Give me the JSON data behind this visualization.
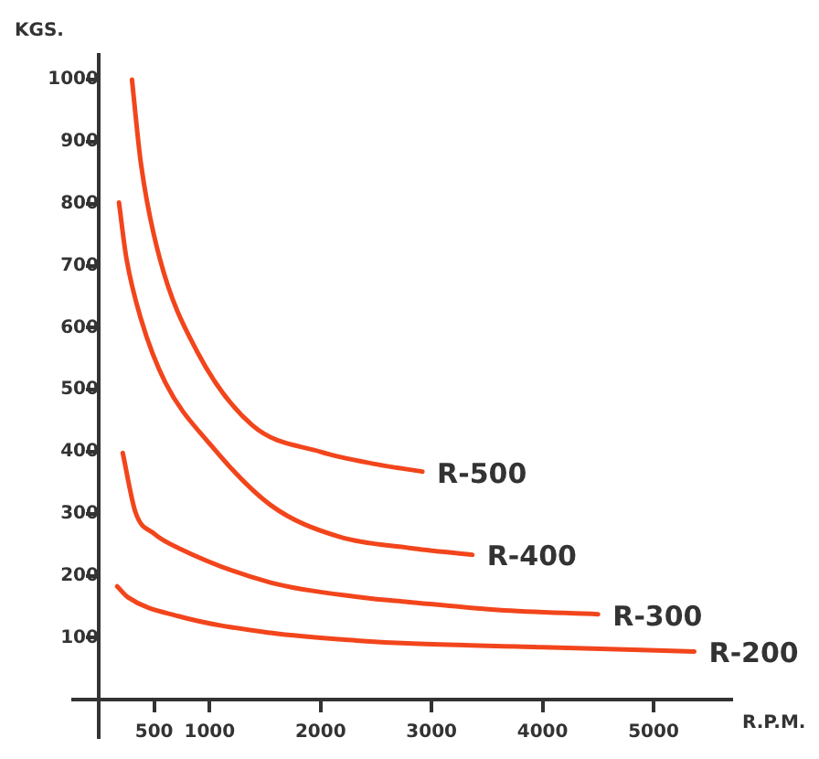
{
  "chart_data": {
    "type": "line",
    "ylabel": "KGS.",
    "xlabel": "R.P.M.",
    "xlim": [
      -230,
      5700
    ],
    "ylim": [
      -60,
      1040
    ],
    "xticks": [
      500,
      1000,
      2000,
      3000,
      4000,
      5000
    ],
    "yticks": [
      100,
      200,
      300,
      400,
      500,
      600,
      700,
      800,
      900,
      1000
    ],
    "grid": false,
    "legend": false,
    "marker": "none",
    "line_style": "solid",
    "series": [
      {
        "name": "R-500",
        "color": "#f2451c",
        "x": [
          300,
          383,
          550,
          883,
          1383,
          2000,
          2500,
          2917
        ],
        "values": [
          1000,
          862,
          712,
          563,
          443,
          400,
          380,
          368
        ]
      },
      {
        "name": "R-400",
        "color": "#f2451c",
        "x": [
          183,
          250,
          383,
          600,
          1000,
          1550,
          2167,
          2800,
          3367
        ],
        "values": [
          802,
          712,
          613,
          512,
          413,
          314,
          263,
          245,
          234
        ]
      },
      {
        "name": "R-300",
        "color": "#f2451c",
        "x": [
          217,
          333,
          500,
          717,
          1550,
          2383,
          2783,
          3600,
          4500
        ],
        "values": [
          398,
          302,
          268,
          245,
          189,
          165,
          158,
          145,
          138
        ]
      },
      {
        "name": "R-200",
        "color": "#f2451c",
        "x": [
          167,
          267,
          717,
          1550,
          2383,
          2783,
          4000,
          5367
        ],
        "values": [
          183,
          165,
          135,
          108,
          95,
          91,
          85,
          78
        ]
      }
    ]
  }
}
